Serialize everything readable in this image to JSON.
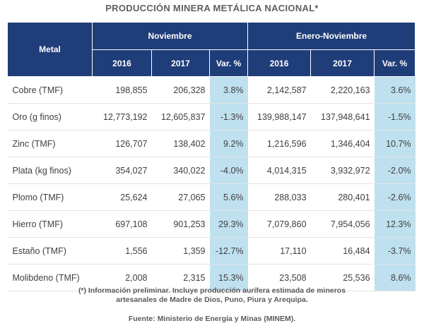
{
  "title": "PRODUCCIÓN MINERA METÁLICA NACIONAL*",
  "headers": {
    "metal": "Metal",
    "group_nov": "Noviembre",
    "group_ytd": "Enero-Noviembre",
    "y2016": "2016",
    "y2017": "2017",
    "var": "Var. %"
  },
  "rows": [
    {
      "metal": "Cobre (TMF)",
      "nov_2016": "198,855",
      "nov_2017": "206,328",
      "nov_var": "3.8%",
      "ytd_2016": "2,142,587",
      "ytd_2017": "2,220,163",
      "ytd_var": "3.6%"
    },
    {
      "metal": "Oro (g finos)",
      "nov_2016": "12,773,192",
      "nov_2017": "12,605,837",
      "nov_var": "-1.3%",
      "ytd_2016": "139,988,147",
      "ytd_2017": "137,948,641",
      "ytd_var": "-1.5%"
    },
    {
      "metal": "Zinc (TMF)",
      "nov_2016": "126,707",
      "nov_2017": "138,402",
      "nov_var": "9.2%",
      "ytd_2016": "1,216,596",
      "ytd_2017": "1,346,404",
      "ytd_var": "10.7%"
    },
    {
      "metal": "Plata (kg finos)",
      "nov_2016": "354,027",
      "nov_2017": "340,022",
      "nov_var": "-4.0%",
      "ytd_2016": "4,014,315",
      "ytd_2017": "3,932,972",
      "ytd_var": "-2.0%"
    },
    {
      "metal": "Plomo (TMF)",
      "nov_2016": "25,624",
      "nov_2017": "27,065",
      "nov_var": "5.6%",
      "ytd_2016": "288,033",
      "ytd_2017": "280,401",
      "ytd_var": "-2.6%"
    },
    {
      "metal": "Hierro (TMF)",
      "nov_2016": "697,108",
      "nov_2017": "901,253",
      "nov_var": "29.3%",
      "ytd_2016": "7,079,860",
      "ytd_2017": "7,954,056",
      "ytd_var": "12.3%"
    },
    {
      "metal": "Estaño (TMF)",
      "nov_2016": "1,556",
      "nov_2017": "1,359",
      "nov_var": "-12.7%",
      "ytd_2016": "17,110",
      "ytd_2017": "16,484",
      "ytd_var": "-3.7%"
    },
    {
      "metal": "Molibdeno (TMF)",
      "nov_2016": "2,008",
      "nov_2017": "2,315",
      "nov_var": "15.3%",
      "ytd_2016": "23,508",
      "ytd_2017": "25,536",
      "ytd_var": "8.6%"
    }
  ],
  "note_line1": "(*) Información preliminar. Incluye producción aurífera estimada de mineros",
  "note_line2": "artesanales de Madre de Dios, Puno, Piura y Arequipa.",
  "source": "Fuente: Ministerio de Energía y Minas (MINEM)."
}
